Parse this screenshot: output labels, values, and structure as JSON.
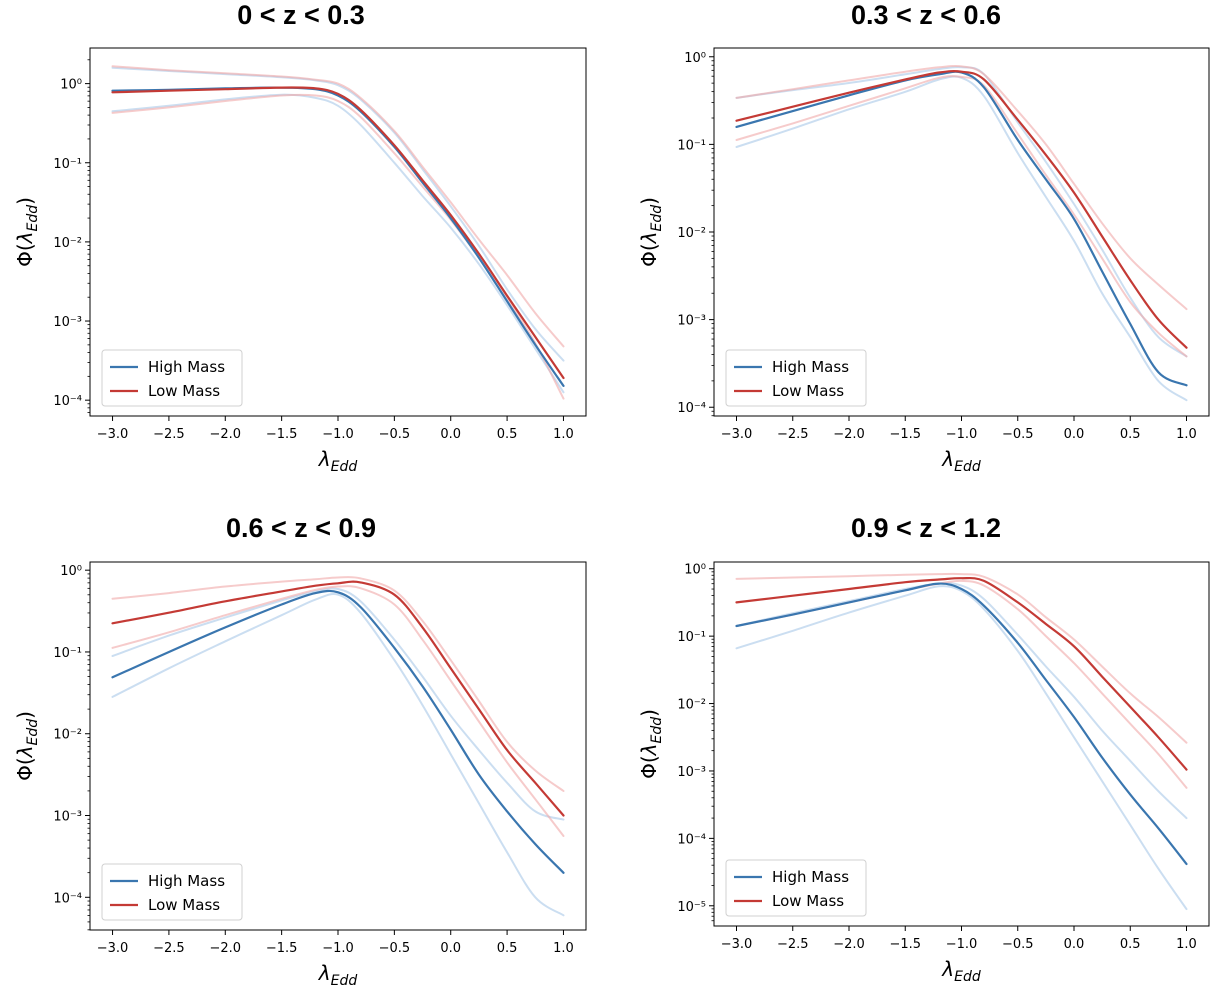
{
  "colors": {
    "high_mass": "#3a76af",
    "low_mass": "#c43a35",
    "high_mass_band": "#a9c8e8",
    "low_mass_band": "#f0a9a9"
  },
  "chart_data": [
    {
      "type": "line",
      "title": "0 < z < 0.3",
      "xlabel": "λ_Edd",
      "ylabel": "Φ(λ_Edd)",
      "xlim": [
        -3.2,
        1.2
      ],
      "ylog": true,
      "ylim_log10": [
        -4.2,
        0.45
      ],
      "xticks": [
        -3.0,
        -2.5,
        -2.0,
        -1.5,
        -1.0,
        -0.5,
        0.0,
        0.5,
        1.0
      ],
      "xtick_labels": [
        "−3.0",
        "−2.5",
        "−2.0",
        "−1.5",
        "−1.0",
        "−0.5",
        "0.0",
        "0.5",
        "1.0"
      ],
      "yticks_exp": [
        0,
        -1,
        -2,
        -3,
        -4
      ],
      "legend": [
        "High Mass",
        "Low Mass"
      ],
      "legend_position": "lower-left",
      "x": [
        -3.0,
        -2.5,
        -2.0,
        -1.5,
        -1.2,
        -1.0,
        -0.8,
        -0.5,
        -0.25,
        0.0,
        0.25,
        0.5,
        0.75,
        1.0
      ],
      "series": [
        {
          "name": "High Mass",
          "role": "main",
          "log10_y": [
            -0.09,
            -0.08,
            -0.06,
            -0.05,
            -0.07,
            -0.15,
            -0.35,
            -0.8,
            -1.25,
            -1.7,
            -2.2,
            -2.75,
            -3.3,
            -3.82
          ]
        },
        {
          "name": "Low Mass",
          "role": "main",
          "log10_y": [
            -0.11,
            -0.09,
            -0.07,
            -0.05,
            -0.06,
            -0.13,
            -0.33,
            -0.78,
            -1.22,
            -1.66,
            -2.15,
            -2.68,
            -3.2,
            -3.72
          ]
        },
        {
          "role": "band",
          "group": "high",
          "log10_y": [
            -0.35,
            -0.28,
            -0.2,
            -0.14,
            -0.18,
            -0.28,
            -0.52,
            -1.0,
            -1.42,
            -1.82,
            -2.28,
            -2.8,
            -3.35,
            -3.9
          ]
        },
        {
          "role": "band",
          "group": "high",
          "log10_y": [
            0.2,
            0.16,
            0.12,
            0.08,
            0.04,
            -0.02,
            -0.2,
            -0.62,
            -1.08,
            -1.55,
            -2.05,
            -2.6,
            -3.1,
            -3.5
          ]
        },
        {
          "role": "band",
          "group": "low",
          "log10_y": [
            -0.37,
            -0.3,
            -0.22,
            -0.15,
            -0.15,
            -0.22,
            -0.42,
            -0.88,
            -1.3,
            -1.72,
            -2.2,
            -2.72,
            -3.28,
            -3.98
          ]
        },
        {
          "role": "band",
          "group": "low",
          "log10_y": [
            0.22,
            0.17,
            0.13,
            0.09,
            0.05,
            0.0,
            -0.18,
            -0.6,
            -1.05,
            -1.5,
            -1.97,
            -2.42,
            -2.9,
            -3.32
          ]
        }
      ]
    },
    {
      "type": "line",
      "title": "0.3 < z < 0.6",
      "xlabel": "λ_Edd",
      "ylabel": "Φ(λ_Edd)",
      "xlim": [
        -3.2,
        1.2
      ],
      "ylog": true,
      "ylim_log10": [
        -4.1,
        0.1
      ],
      "xticks": [
        -3.0,
        -2.5,
        -2.0,
        -1.5,
        -1.0,
        -0.5,
        0.0,
        0.5,
        1.0
      ],
      "xtick_labels": [
        "−3.0",
        "−2.5",
        "−2.0",
        "−1.5",
        "−1.0",
        "−0.5",
        "0.0",
        "0.5",
        "1.0"
      ],
      "yticks_exp": [
        0,
        -1,
        -2,
        -3,
        -4
      ],
      "legend": [
        "High Mass",
        "Low Mass"
      ],
      "legend_position": "lower-left",
      "x": [
        -3.0,
        -2.5,
        -2.0,
        -1.5,
        -1.2,
        -1.0,
        -0.8,
        -0.5,
        -0.25,
        0.0,
        0.25,
        0.5,
        0.75,
        1.0
      ],
      "series": [
        {
          "name": "High Mass",
          "role": "main",
          "log10_y": [
            -0.8,
            -0.62,
            -0.44,
            -0.27,
            -0.2,
            -0.18,
            -0.35,
            -0.95,
            -1.4,
            -1.85,
            -2.45,
            -3.05,
            -3.6,
            -3.75
          ]
        },
        {
          "name": "Low Mass",
          "role": "main",
          "log10_y": [
            -0.73,
            -0.57,
            -0.41,
            -0.26,
            -0.18,
            -0.17,
            -0.26,
            -0.72,
            -1.12,
            -1.55,
            -2.05,
            -2.55,
            -3.0,
            -3.32
          ]
        },
        {
          "role": "band",
          "group": "high",
          "log10_y": [
            -1.03,
            -0.82,
            -0.6,
            -0.4,
            -0.26,
            -0.24,
            -0.45,
            -1.1,
            -1.6,
            -2.1,
            -2.7,
            -3.2,
            -3.7,
            -3.92
          ]
        },
        {
          "role": "band",
          "group": "high",
          "log10_y": [
            -0.47,
            -0.38,
            -0.3,
            -0.2,
            -0.14,
            -0.12,
            -0.2,
            -0.75,
            -1.2,
            -1.68,
            -2.2,
            -2.75,
            -3.2,
            -3.42
          ]
        },
        {
          "role": "band",
          "group": "low",
          "log10_y": [
            -0.95,
            -0.76,
            -0.56,
            -0.36,
            -0.24,
            -0.23,
            -0.33,
            -0.88,
            -1.35,
            -1.8,
            -2.3,
            -2.8,
            -3.15,
            -3.42
          ]
        },
        {
          "role": "band",
          "group": "low",
          "log10_y": [
            -0.47,
            -0.37,
            -0.27,
            -0.17,
            -0.12,
            -0.11,
            -0.2,
            -0.62,
            -1.0,
            -1.45,
            -1.9,
            -2.3,
            -2.6,
            -2.88
          ]
        }
      ]
    },
    {
      "type": "line",
      "title": "0.6 < z < 0.9",
      "xlabel": "λ_Edd",
      "ylabel": "Φ(λ_Edd)",
      "xlim": [
        -3.2,
        1.2
      ],
      "ylog": true,
      "ylim_log10": [
        -4.4,
        0.1
      ],
      "xticks": [
        -3.0,
        -2.5,
        -2.0,
        -1.5,
        -1.0,
        -0.5,
        0.0,
        0.5,
        1.0
      ],
      "xtick_labels": [
        "−3.0",
        "−2.5",
        "−2.0",
        "−1.5",
        "−1.0",
        "−0.5",
        "0.0",
        "0.5",
        "1.0"
      ],
      "yticks_exp": [
        0,
        -1,
        -2,
        -3,
        -4
      ],
      "legend": [
        "High Mass",
        "Low Mass"
      ],
      "legend_position": "lower-left",
      "x": [
        -3.0,
        -2.5,
        -2.0,
        -1.5,
        -1.2,
        -1.0,
        -0.8,
        -0.5,
        -0.25,
        0.0,
        0.25,
        0.5,
        0.75,
        1.0
      ],
      "series": [
        {
          "name": "High Mass",
          "role": "main",
          "log10_y": [
            -1.31,
            -1.0,
            -0.7,
            -0.42,
            -0.28,
            -0.27,
            -0.45,
            -0.95,
            -1.42,
            -1.95,
            -2.5,
            -2.95,
            -3.35,
            -3.7
          ]
        },
        {
          "name": "Low Mass",
          "role": "main",
          "log10_y": [
            -0.65,
            -0.52,
            -0.38,
            -0.26,
            -0.19,
            -0.16,
            -0.15,
            -0.3,
            -0.7,
            -1.2,
            -1.7,
            -2.2,
            -2.6,
            -3.0
          ]
        },
        {
          "role": "band",
          "group": "high",
          "log10_y": [
            -1.55,
            -1.2,
            -0.87,
            -0.55,
            -0.36,
            -0.3,
            -0.52,
            -1.1,
            -1.65,
            -2.25,
            -2.85,
            -3.45,
            -4.0,
            -4.22
          ]
        },
        {
          "role": "band",
          "group": "high",
          "log10_y": [
            -1.05,
            -0.8,
            -0.58,
            -0.37,
            -0.26,
            -0.23,
            -0.38,
            -0.85,
            -1.3,
            -1.78,
            -2.2,
            -2.6,
            -2.95,
            -3.05
          ]
        },
        {
          "role": "band",
          "group": "low",
          "log10_y": [
            -0.95,
            -0.76,
            -0.55,
            -0.35,
            -0.24,
            -0.2,
            -0.22,
            -0.42,
            -0.85,
            -1.35,
            -1.85,
            -2.35,
            -2.8,
            -3.25
          ]
        },
        {
          "role": "band",
          "group": "low",
          "log10_y": [
            -0.35,
            -0.28,
            -0.2,
            -0.14,
            -0.11,
            -0.09,
            -0.1,
            -0.25,
            -0.62,
            -1.1,
            -1.6,
            -2.1,
            -2.45,
            -2.7
          ]
        }
      ]
    },
    {
      "type": "line",
      "title": "0.9 < z < 1.2",
      "xlabel": "λ_Edd",
      "ylabel": "Φ(λ_Edd)",
      "xlim": [
        -3.2,
        1.2
      ],
      "ylog": true,
      "ylim_log10": [
        -5.3,
        0.1
      ],
      "xticks": [
        -3.0,
        -2.5,
        -2.0,
        -1.5,
        -1.0,
        -0.5,
        0.0,
        0.5,
        1.0
      ],
      "xtick_labels": [
        "−3.0",
        "−2.5",
        "−2.0",
        "−1.5",
        "−1.0",
        "−0.5",
        "0.0",
        "0.5",
        "1.0"
      ],
      "yticks_exp": [
        0,
        -1,
        -2,
        -3,
        -4,
        -5
      ],
      "legend": [
        "High Mass",
        "Low Mass"
      ],
      "legend_position": "lower-left",
      "x": [
        -3.0,
        -2.5,
        -2.0,
        -1.5,
        -1.2,
        -1.0,
        -0.8,
        -0.5,
        -0.25,
        0.0,
        0.25,
        0.5,
        0.75,
        1.0
      ],
      "series": [
        {
          "name": "High Mass",
          "role": "main",
          "log10_y": [
            -0.85,
            -0.68,
            -0.5,
            -0.32,
            -0.22,
            -0.3,
            -0.55,
            -1.1,
            -1.65,
            -2.2,
            -2.8,
            -3.35,
            -3.85,
            -4.38
          ]
        },
        {
          "name": "Low Mass",
          "role": "main",
          "log10_y": [
            -0.5,
            -0.4,
            -0.3,
            -0.2,
            -0.16,
            -0.14,
            -0.18,
            -0.5,
            -0.82,
            -1.15,
            -1.6,
            -2.05,
            -2.5,
            -2.98
          ]
        },
        {
          "role": "band",
          "group": "high",
          "log10_y": [
            -1.18,
            -0.92,
            -0.65,
            -0.4,
            -0.26,
            -0.33,
            -0.6,
            -1.22,
            -1.85,
            -2.5,
            -3.15,
            -3.8,
            -4.45,
            -5.05
          ]
        },
        {
          "role": "band",
          "group": "high",
          "log10_y": [
            -0.85,
            -0.66,
            -0.48,
            -0.3,
            -0.22,
            -0.25,
            -0.45,
            -0.98,
            -1.45,
            -1.9,
            -2.4,
            -2.85,
            -3.3,
            -3.7
          ]
        },
        {
          "role": "band",
          "group": "low",
          "log10_y": [
            -0.85,
            -0.68,
            -0.5,
            -0.32,
            -0.22,
            -0.18,
            -0.25,
            -0.6,
            -1.0,
            -1.4,
            -1.85,
            -2.3,
            -2.75,
            -3.25
          ]
        },
        {
          "role": "band",
          "group": "low",
          "log10_y": [
            -0.15,
            -0.13,
            -0.11,
            -0.09,
            -0.08,
            -0.08,
            -0.12,
            -0.38,
            -0.72,
            -1.05,
            -1.45,
            -1.85,
            -2.2,
            -2.58
          ]
        }
      ]
    }
  ]
}
